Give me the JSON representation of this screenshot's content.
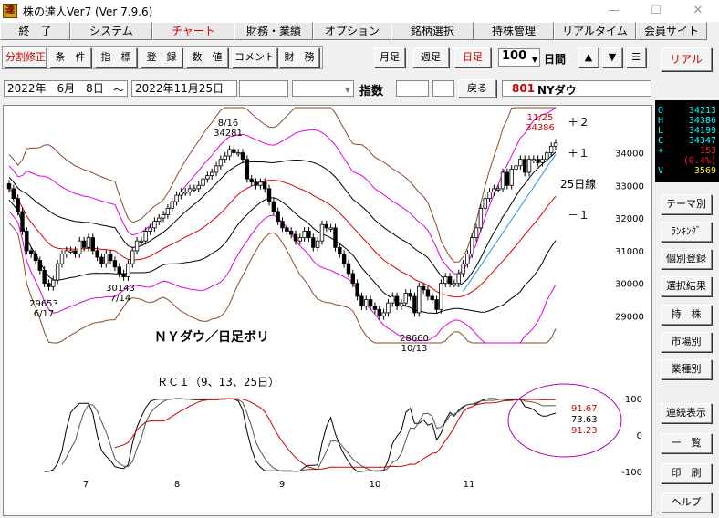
{
  "window": {
    "title": "株の達人Ver7 (Ver 7.9.6)",
    "icon": "達",
    "minimize": "—",
    "maximize": "☐",
    "close": "✕"
  },
  "menu": [
    {
      "label": "終　了",
      "w": 77
    },
    {
      "label": "システム",
      "w": 90
    },
    {
      "label": "チャート",
      "w": 90,
      "active": true
    },
    {
      "label": "財務・業績",
      "w": 86
    },
    {
      "label": "オプション",
      "w": 86
    },
    {
      "label": "銘柄選択",
      "w": 90
    },
    {
      "label": "持株管理",
      "w": 88
    },
    {
      "label": "リアルタイム",
      "w": 90
    },
    {
      "label": "会員サイト",
      "w": 78
    }
  ],
  "toolbar": {
    "split": "分割修正",
    "condition": "条　件",
    "indicator": "指　標",
    "register": "登　録",
    "value": "数　値",
    "comment": "コメント",
    "finance": "財　務",
    "monthly": "月足",
    "weekly": "週足",
    "daily": "日足",
    "period_value": "100",
    "period_unit": "日間",
    "up": "▲",
    "down": "▼",
    "menu": "☰",
    "realtime": "リアル"
  },
  "datebar": {
    "start": "2022年　6月　8日",
    "tilde": "～",
    "end": "2022年11月25日",
    "index_label": "指数",
    "back": "戻る",
    "code": "801",
    "name": "NYダウ"
  },
  "quote": {
    "rows": [
      {
        "k": "O",
        "v": "34213",
        "c": "#00ffff"
      },
      {
        "k": "H",
        "v": "34386",
        "c": "#00ffff"
      },
      {
        "k": "L",
        "v": "34199",
        "c": "#00ffff"
      },
      {
        "k": "C",
        "v": "34347",
        "c": "#00ffff"
      },
      {
        "k": "+",
        "v": "153",
        "c": "#ff2020"
      },
      {
        "k": "",
        "v": "(0.4%)",
        "c": "#ff2020"
      },
      {
        "k": "V",
        "v": "3569",
        "c": "#ffff00"
      }
    ]
  },
  "side_buttons": [
    "テーマ別",
    "ﾗﾝｷﾝｸﾞ",
    "個別登録",
    "選択結果",
    "持　株",
    "市場別",
    "業種別",
    "連続表示",
    "一　覧",
    "印　刷",
    "ヘルプ"
  ],
  "chart": {
    "price_ticks": [
      "34000",
      "33000",
      "32000",
      "31000",
      "30000",
      "29000"
    ],
    "band_labels": [
      "＋２",
      "＋１",
      "25日線",
      "－１"
    ],
    "title": "ＮＹダウ／日足ボリ",
    "annotations": [
      {
        "l1": "8/16",
        "l2": "34281"
      },
      {
        "l1": "29653",
        "l2": "6/17"
      },
      {
        "l1": "30143",
        "l2": "7/14"
      },
      {
        "l1": "28660",
        "l2": "10/13"
      },
      {
        "l1": "11/25",
        "l2": "34386"
      }
    ],
    "rci_title": "ＲＣＩ（9、13、25日）",
    "rci_ticks": [
      "100",
      "0",
      "-100"
    ],
    "rci_values": [
      "91.67",
      "73.63",
      "91.23"
    ],
    "months": [
      "7",
      "8",
      "9",
      "10",
      "11"
    ]
  },
  "chart_data": {
    "type": "candlestick",
    "title": "ＮＹダウ／日足ボリ",
    "y_ticks": [
      34000,
      33000,
      32000,
      31000,
      30000,
      29000
    ],
    "x_months": [
      "7",
      "8",
      "9",
      "10",
      "11"
    ],
    "highs_lows": [
      {
        "label": "8/16",
        "value": 34281
      },
      {
        "label": "6/17",
        "value": 29653
      },
      {
        "label": "7/14",
        "value": 30143
      },
      {
        "label": "10/13",
        "value": 28660
      },
      {
        "label": "11/25",
        "value": 34386
      }
    ],
    "closes": [
      32900,
      32600,
      32200,
      31600,
      31000,
      30900,
      30700,
      30400,
      30000,
      29900,
      30100,
      30600,
      30900,
      31000,
      31000,
      30900,
      31300,
      31100,
      31400,
      31000,
      30800,
      30600,
      30900,
      30700,
      30500,
      30300,
      30200,
      30600,
      31000,
      31300,
      31300,
      31600,
      31700,
      31900,
      32000,
      32100,
      32300,
      32500,
      32700,
      32800,
      32800,
      32900,
      32900,
      33000,
      33200,
      33300,
      33400,
      33600,
      33800,
      33900,
      34100,
      34000,
      34000,
      33800,
      33200,
      33100,
      33000,
      33100,
      32900,
      32500,
      32200,
      31900,
      31700,
      31600,
      31500,
      31300,
      31400,
      31600,
      31400,
      31100,
      31300,
      31800,
      31700,
      31700,
      31100,
      30900,
      30600,
      30300,
      30000,
      29600,
      29300,
      29500,
      29300,
      29200,
      29000,
      29100,
      29400,
      29600,
      29300,
      29400,
      29700,
      29600,
      29100,
      29900,
      29800,
      29600,
      29500,
      29200,
      30000,
      30200,
      30000,
      30000,
      30300,
      30600,
      30900,
      31400,
      31700,
      32300,
      32600,
      32800,
      32900,
      32900,
      33400,
      33000,
      33500,
      33600,
      33800,
      33400,
      33800,
      33800,
      33700,
      33800,
      34000,
      34200,
      34300
    ],
    "rci_values": [
      91.67,
      73.63,
      91.23
    ],
    "rci_ylim": [
      -100,
      100
    ]
  }
}
